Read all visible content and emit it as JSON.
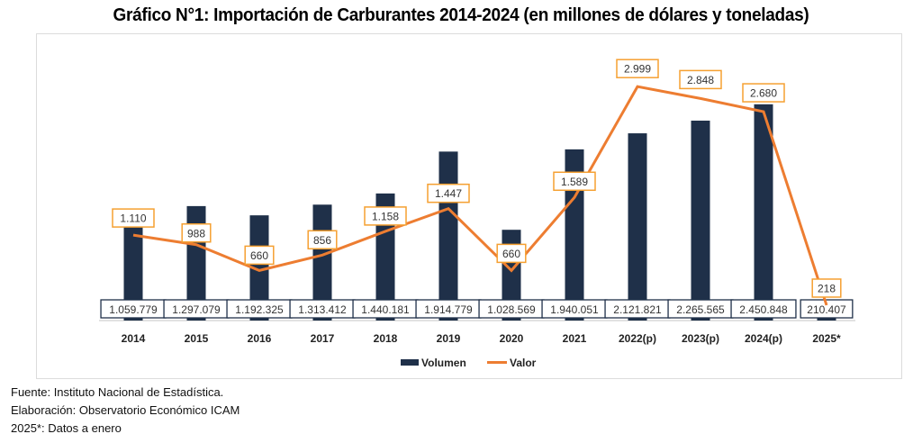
{
  "chart_data": {
    "type": "bar",
    "title": "Gráfico N°1: Importación de Carburantes 2014-2024 (en millones de dólares y toneladas)",
    "xlabel": "",
    "ylabel": "",
    "grid": false,
    "legend_position": "bottom-center",
    "categories": [
      "2014",
      "2015",
      "2016",
      "2017",
      "2018",
      "2019",
      "2020",
      "2021",
      "2022(p)",
      "2023(p)",
      "2024(p)",
      "2025*"
    ],
    "series": [
      {
        "name": "Volumen",
        "type": "bar",
        "color": "#1f3049",
        "values": [
          1059779,
          1297079,
          1192325,
          1313412,
          1440181,
          1914779,
          1028569,
          1940051,
          2121821,
          2265565,
          2450848,
          210407
        ],
        "labels": [
          "1.059.779",
          "1.297.079",
          "1.192.325",
          "1.313.412",
          "1.440.181",
          "1.914.779",
          "1.028.569",
          "1.940.051",
          "2.121.821",
          "2.265.565",
          "2.450.848",
          "210.407"
        ]
      },
      {
        "name": "Valor",
        "type": "line",
        "color": "#ed7d31",
        "values": [
          1110,
          988,
          660,
          856,
          1158,
          1447,
          660,
          1589,
          2999,
          2848,
          2680,
          218
        ],
        "labels": [
          "1.110",
          "988",
          "660",
          "856",
          "1.158",
          "1.447",
          "660",
          "1.589",
          "2.999",
          "2.848",
          "2.680",
          "218"
        ]
      }
    ],
    "bar_axis_max": 2500000,
    "line_axis_max": 3070
  },
  "notes": {
    "source": "Fuente: Instituto Nacional de Estadística.",
    "elaboration": "Elaboración: Observatorio Económico ICAM",
    "footnote": "2025*: Datos a enero"
  }
}
